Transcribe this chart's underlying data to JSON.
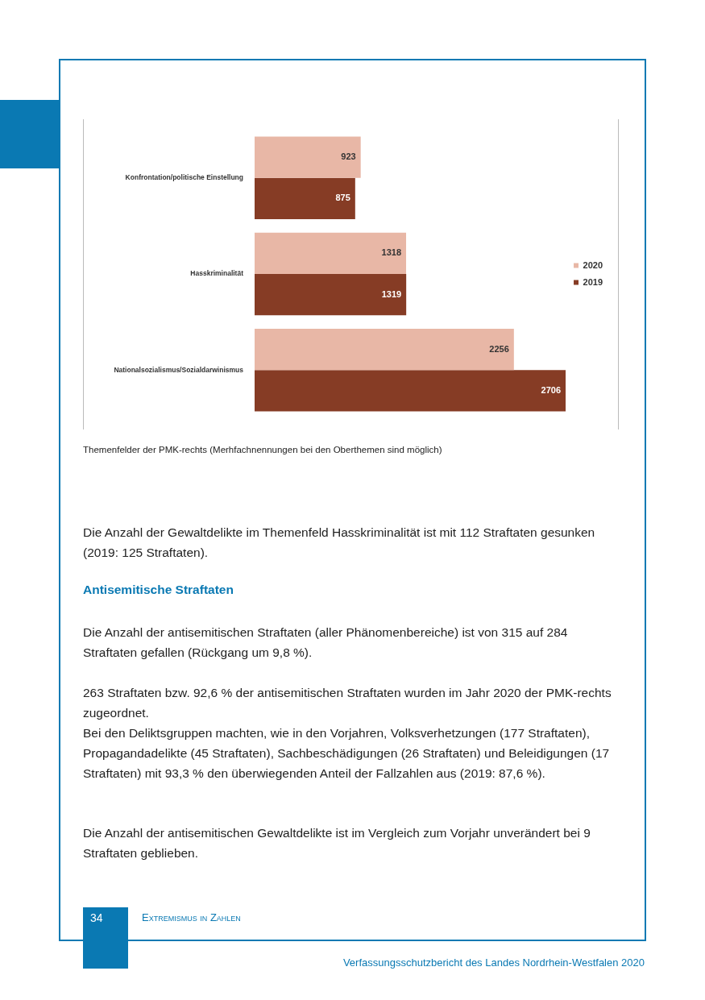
{
  "chart_data": {
    "type": "bar",
    "orientation": "horizontal",
    "categories": [
      "Konfrontation/politische Einstellung",
      "Hasskriminalität",
      "Nationalsozialismus/Sozialdarwinismus"
    ],
    "series": [
      {
        "name": "2020",
        "color": "#e8b7a6",
        "values": [
          923,
          1318,
          2256
        ]
      },
      {
        "name": "2019",
        "color": "#863c25",
        "values": [
          875,
          1319,
          2706
        ]
      }
    ],
    "data_labels": true,
    "legend": "right",
    "annotations": [
      "Themenfelder der PMK-rechts (Merhfachnennungen bei den Oberthemen sind möglich)",
      "Die Anzahl der Gewaltdelikte im Themenfeld Hasskriminalität ist mit 112 Straftaten gesunken (2019: 125 Straftaten).",
      "Antisemitische Straftaten",
      "Die Anzahl der antisemitischen Straftaten (aller Phänomenbereiche) ist von 315 auf 284 Straftaten gefallen (Rückgang um 9,8 %).",
      "263 Straftaten bzw. 92,6 % der antisemitischen Straftaten wurden im Jahr 2020 der PMK-rechts zugeordnet.",
      "Bei den Deliktsgruppen machten, wie in den Vorjahren, Volksverhetzungen (177 Straftaten), Propagandadelikte (45 Straftaten), Sachbeschädigungen (26 Straftaten) und Beleidigungen (17 Straftaten) mit 93,3 % den überwiegenden Anteil der Fallzahlen aus (2019: 87,6 %).",
      "Die Anzahl der antisemitischen Gewaltdelikte ist im Vergleich zum Vorjahr unverändert bei 9 Straftaten geblieben.",
      "34",
      "Extremismus in Zahlen",
      "Verfassungsschutzbericht des Landes Nordrhein-Westfalen 2020"
    ]
  }
}
